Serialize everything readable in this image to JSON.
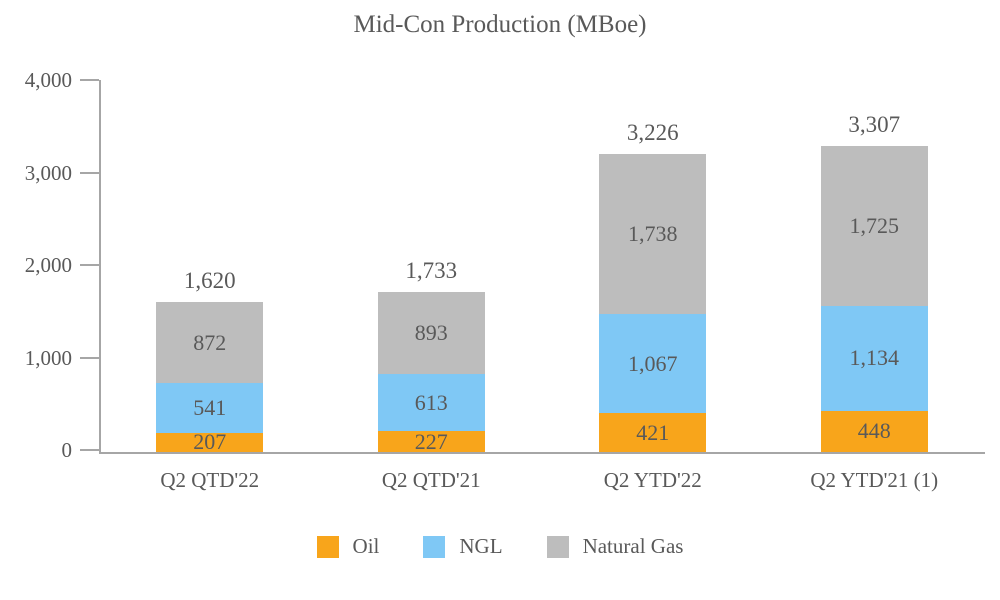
{
  "chart_data": {
    "type": "bar",
    "stacked": true,
    "title": "Mid-Con Production (MBoe)",
    "categories": [
      "Q2 QTD'22",
      "Q2 QTD'21",
      "Q2 YTD'22",
      "Q2 YTD'21 (1)"
    ],
    "series": [
      {
        "name": "Oil",
        "color": "#F8A51B",
        "values": [
          207,
          227,
          421,
          448
        ]
      },
      {
        "name": "NGL",
        "color": "#7FC8F5",
        "values": [
          541,
          613,
          1067,
          1134
        ]
      },
      {
        "name": "Natural Gas",
        "color": "#BDBDBD",
        "values": [
          872,
          893,
          1738,
          1725
        ]
      }
    ],
    "totals": [
      1620,
      1733,
      3226,
      3307
    ],
    "y_axis": {
      "min": 0,
      "max": 4000,
      "tick_step": 1000,
      "tick_labels": [
        "0",
        "1,000",
        "2,000",
        "3,000",
        "4,000"
      ]
    },
    "legend_position": "bottom",
    "grid": false,
    "text_color": "#595959",
    "axis_color": "#A6A6A6"
  }
}
